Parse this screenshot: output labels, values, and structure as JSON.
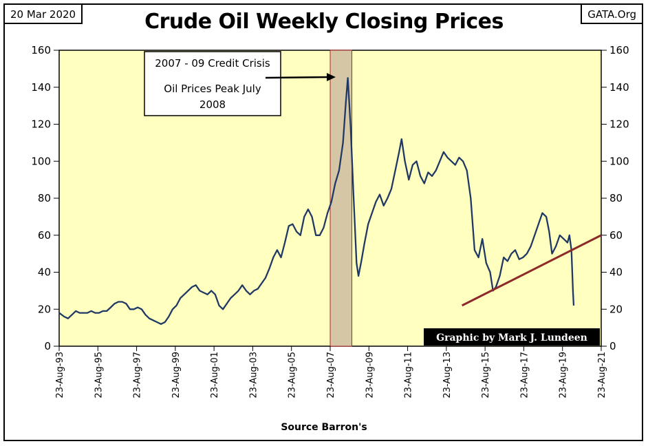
{
  "header": {
    "date": "20 Mar 2020",
    "site": "GATA.Org",
    "title": "Crude Oil Weekly Closing Prices"
  },
  "annotations": {
    "crisis_line1": "2007 - 09 Credit Crisis",
    "crisis_line2": "Oil Prices Peak July",
    "crisis_line3": "2008",
    "credit": "Graphic by Mark J. Lundeen"
  },
  "colors": {
    "plot_bg": "#ffffc0",
    "series": "#1f3864",
    "shade": "#d5c6a5",
    "trendline": "#8b2a2a",
    "credit_bg": "#000000"
  },
  "chart_data": {
    "type": "line",
    "title": "Crude Oil Weekly Closing Prices",
    "xlabel": "Source Barron's",
    "ylabel": "",
    "ylim": [
      0,
      160
    ],
    "yticks": [
      0,
      20,
      40,
      60,
      80,
      100,
      120,
      140,
      160
    ],
    "y_axis_both_sides": true,
    "grid": false,
    "xlim": [
      1993.64,
      2021.64
    ],
    "xtick_labels": [
      "23-Aug-93",
      "23-Aug-95",
      "23-Aug-97",
      "23-Aug-99",
      "23-Aug-01",
      "23-Aug-03",
      "23-Aug-05",
      "23-Aug-07",
      "23-Aug-09",
      "23-Aug-11",
      "23-Aug-13",
      "23-Aug-15",
      "23-Aug-17",
      "23-Aug-19",
      "23-Aug-21"
    ],
    "xtick_values": [
      1993.64,
      1995.64,
      1997.64,
      1999.64,
      2001.64,
      2003.64,
      2005.64,
      2007.64,
      2009.64,
      2011.64,
      2013.64,
      2015.64,
      2017.64,
      2019.64,
      2021.64
    ],
    "shaded_region": {
      "x": [
        2007.64,
        2008.76
      ],
      "label": "2007 - 09 Credit Crisis"
    },
    "series": [
      {
        "x": [
          1993.64,
          1993.9,
          1994.1,
          1994.3,
          1994.5,
          1994.7,
          1994.9,
          1995.1,
          1995.3,
          1995.5,
          1995.7,
          1995.9,
          1996.1,
          1996.3,
          1996.5,
          1996.7,
          1996.9,
          1997.1,
          1997.3,
          1997.5,
          1997.7,
          1997.9,
          1998.1,
          1998.3,
          1998.5,
          1998.7,
          1998.9,
          1999.1,
          1999.3,
          1999.5,
          1999.7,
          1999.9,
          2000.1,
          2000.3,
          2000.5,
          2000.7,
          2000.9,
          2001.1,
          2001.3,
          2001.5,
          2001.7,
          2001.9,
          2002.1,
          2002.3,
          2002.5,
          2002.7,
          2002.9,
          2003.1,
          2003.3,
          2003.5,
          2003.7,
          2003.9,
          2004.1,
          2004.3,
          2004.5,
          2004.7,
          2004.9,
          2005.1,
          2005.3,
          2005.5,
          2005.7,
          2005.9,
          2006.1,
          2006.3,
          2006.5,
          2006.7,
          2006.9,
          2007.1,
          2007.3,
          2007.5,
          2007.7,
          2007.9,
          2008.1,
          2008.3,
          2008.45,
          2008.55,
          2008.7,
          2008.85,
          2009.0,
          2009.1,
          2009.25,
          2009.4,
          2009.6,
          2009.8,
          2010.0,
          2010.2,
          2010.4,
          2010.6,
          2010.8,
          2011.0,
          2011.2,
          2011.33,
          2011.5,
          2011.7,
          2011.9,
          2012.1,
          2012.3,
          2012.5,
          2012.7,
          2012.9,
          2013.1,
          2013.3,
          2013.5,
          2013.7,
          2013.9,
          2014.1,
          2014.3,
          2014.5,
          2014.7,
          2014.9,
          2015.1,
          2015.3,
          2015.5,
          2015.7,
          2015.9,
          2016.05,
          2016.2,
          2016.4,
          2016.6,
          2016.8,
          2017.0,
          2017.2,
          2017.4,
          2017.6,
          2017.8,
          2018.0,
          2018.2,
          2018.4,
          2018.6,
          2018.8,
          2018.95,
          2019.1,
          2019.3,
          2019.5,
          2019.7,
          2019.9,
          2020.0,
          2020.1,
          2020.18,
          2020.22
        ],
        "values": [
          18,
          16,
          15,
          17,
          19,
          18,
          18,
          18,
          19,
          18,
          18,
          19,
          19,
          21,
          23,
          24,
          24,
          23,
          20,
          20,
          21,
          20,
          17,
          15,
          14,
          13,
          12,
          13,
          16,
          20,
          22,
          26,
          28,
          30,
          32,
          33,
          30,
          29,
          28,
          30,
          28,
          22,
          20,
          23,
          26,
          28,
          30,
          33,
          30,
          28,
          30,
          31,
          34,
          37,
          42,
          48,
          52,
          48,
          56,
          65,
          66,
          62,
          60,
          70,
          74,
          70,
          60,
          60,
          64,
          72,
          78,
          88,
          95,
          110,
          132,
          145,
          118,
          80,
          45,
          38,
          46,
          55,
          66,
          72,
          78,
          82,
          76,
          80,
          85,
          95,
          105,
          112,
          100,
          90,
          98,
          100,
          92,
          88,
          94,
          92,
          95,
          100,
          105,
          102,
          100,
          98,
          102,
          100,
          95,
          80,
          52,
          48,
          58,
          45,
          40,
          30,
          32,
          38,
          48,
          46,
          50,
          52,
          47,
          48,
          50,
          54,
          60,
          66,
          72,
          70,
          62,
          50,
          54,
          60,
          58,
          56,
          60,
          52,
          30,
          22
        ],
        "marker": "none"
      }
    ],
    "trendline": {
      "x": [
        2014.45,
        2021.64
      ],
      "y": [
        22,
        60
      ]
    }
  }
}
